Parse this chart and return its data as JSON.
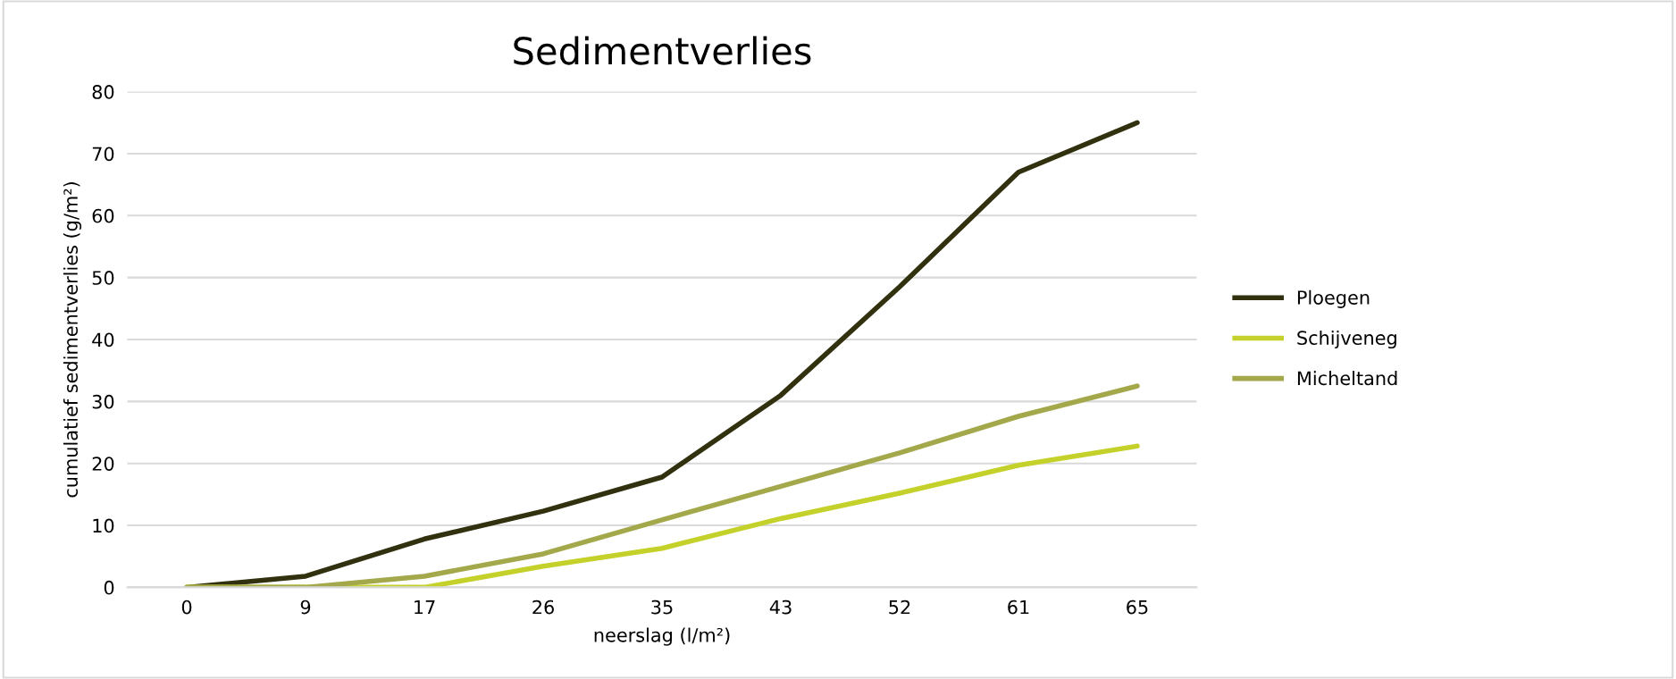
{
  "chart_data": {
    "type": "line",
    "title": "Sedimentverlies",
    "xlabel": "neerslag (l/m²)",
    "ylabel": "cumulatief sedimentverlies (g/m²)",
    "categories": [
      "0",
      "9",
      "17",
      "26",
      "35",
      "43",
      "52",
      "61",
      "65"
    ],
    "series": [
      {
        "name": "Ploegen",
        "color": "#31310f",
        "values": [
          0,
          1.8,
          7.8,
          12.3,
          17.8,
          31,
          48.5,
          67,
          75
        ]
      },
      {
        "name": "Schijveneg",
        "color": "#c4d12a",
        "values": [
          0,
          0,
          0,
          3.4,
          6.3,
          11.1,
          15.2,
          19.7,
          22.8
        ]
      },
      {
        "name": "Micheltand",
        "color": "#a3a84b",
        "values": [
          0,
          0,
          1.8,
          5.4,
          10.9,
          16.3,
          21.7,
          27.6,
          32.5
        ]
      }
    ],
    "ylim": [
      0,
      80
    ],
    "yticks": [
      0,
      10,
      20,
      30,
      40,
      50,
      60,
      70,
      80
    ],
    "grid": "y",
    "legend": "right",
    "marker": "none",
    "line_style": "solid"
  }
}
